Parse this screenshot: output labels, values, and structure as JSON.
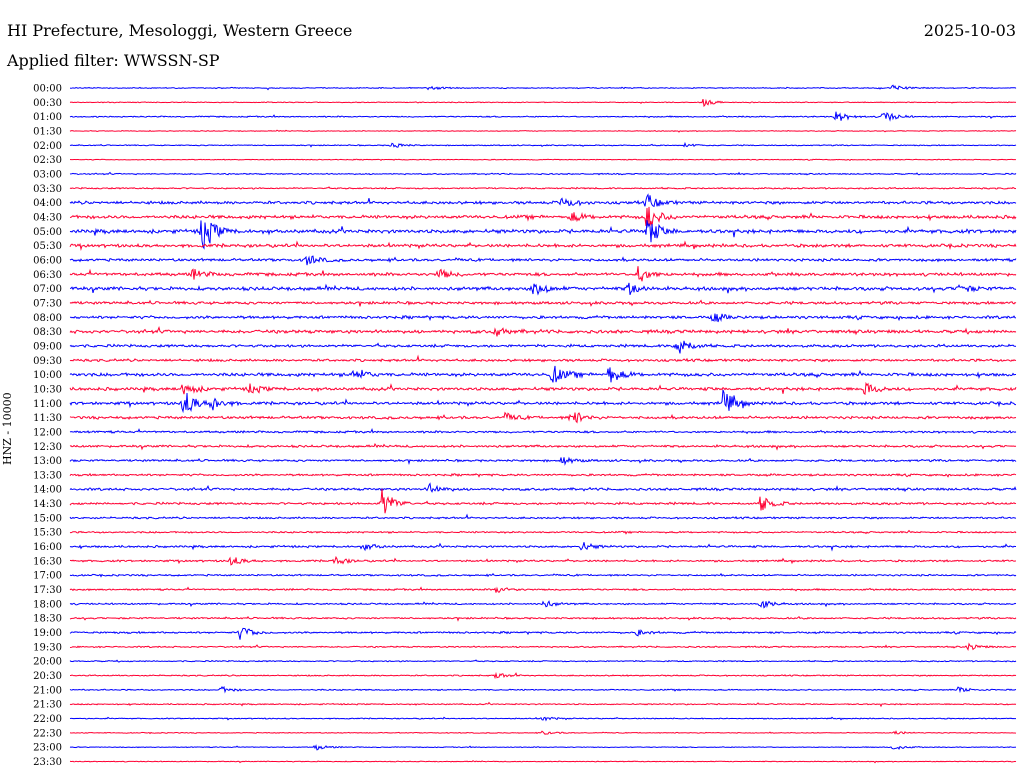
{
  "header": {
    "station": "HI Prefecture, Mesologgi, Western Greece",
    "date": "2025-10-03",
    "filter_label": "Applied filter: WWSSN-SP"
  },
  "colors": {
    "trace_even": "#0000ff",
    "trace_odd": "#ff0033",
    "text": "#000000",
    "background": "#ffffff"
  },
  "chart_data": {
    "type": "line",
    "title": "",
    "ylabel": "HNZ - 10000",
    "xlabel": "",
    "grid": false,
    "y_categories": [
      "00:00",
      "00:30",
      "01:00",
      "01:30",
      "02:00",
      "02:30",
      "03:00",
      "03:30",
      "04:00",
      "04:30",
      "05:00",
      "05:30",
      "06:00",
      "06:30",
      "07:00",
      "07:30",
      "08:00",
      "08:30",
      "09:00",
      "09:30",
      "10:00",
      "10:30",
      "11:00",
      "11:30",
      "12:00",
      "12:30",
      "13:00",
      "13:30",
      "14:00",
      "14:30",
      "15:00",
      "15:30",
      "16:00",
      "16:30",
      "17:00",
      "17:30",
      "18:00",
      "18:30",
      "19:00",
      "19:30",
      "20:00",
      "20:30",
      "21:00",
      "21:30",
      "22:00",
      "22:30",
      "23:00",
      "23:30"
    ],
    "noise_level": [
      0.5,
      0.4,
      0.6,
      0.4,
      0.5,
      0.4,
      0.6,
      0.7,
      1.4,
      1.6,
      1.8,
      1.5,
      1.3,
      1.5,
      1.7,
      1.3,
      1.4,
      1.6,
      1.3,
      1.2,
      1.6,
      1.5,
      1.4,
      1.3,
      1.0,
      1.1,
      1.0,
      1.0,
      1.2,
      1.1,
      0.9,
      0.8,
      1.0,
      0.9,
      0.8,
      0.8,
      0.8,
      0.8,
      0.9,
      0.7,
      0.6,
      0.6,
      0.6,
      0.6,
      0.5,
      0.4,
      0.4,
      0.4
    ],
    "events": [
      {
        "row": 0,
        "t": 0.38,
        "amp": 2
      },
      {
        "row": 0,
        "t": 0.87,
        "amp": 3
      },
      {
        "row": 1,
        "t": 0.67,
        "amp": 4
      },
      {
        "row": 2,
        "t": 0.81,
        "amp": 6
      },
      {
        "row": 2,
        "t": 0.86,
        "amp": 7
      },
      {
        "row": 4,
        "t": 0.34,
        "amp": 3
      },
      {
        "row": 4,
        "t": 0.65,
        "amp": 2
      },
      {
        "row": 8,
        "t": 0.52,
        "amp": 6
      },
      {
        "row": 8,
        "t": 0.61,
        "amp": 8
      },
      {
        "row": 9,
        "t": 0.61,
        "amp": 14
      },
      {
        "row": 9,
        "t": 0.53,
        "amp": 5
      },
      {
        "row": 10,
        "t": 0.14,
        "amp": 22
      },
      {
        "row": 10,
        "t": 0.61,
        "amp": 16
      },
      {
        "row": 12,
        "t": 0.25,
        "amp": 6
      },
      {
        "row": 13,
        "t": 0.13,
        "amp": 5
      },
      {
        "row": 13,
        "t": 0.6,
        "amp": 9
      },
      {
        "row": 13,
        "t": 0.39,
        "amp": 5
      },
      {
        "row": 14,
        "t": 0.49,
        "amp": 8
      },
      {
        "row": 14,
        "t": 0.59,
        "amp": 6
      },
      {
        "row": 14,
        "t": 0.94,
        "amp": 5
      },
      {
        "row": 16,
        "t": 0.68,
        "amp": 5
      },
      {
        "row": 17,
        "t": 0.45,
        "amp": 5
      },
      {
        "row": 18,
        "t": 0.64,
        "amp": 14
      },
      {
        "row": 20,
        "t": 0.3,
        "amp": 7
      },
      {
        "row": 20,
        "t": 0.51,
        "amp": 10
      },
      {
        "row": 20,
        "t": 0.57,
        "amp": 9
      },
      {
        "row": 21,
        "t": 0.12,
        "amp": 7
      },
      {
        "row": 21,
        "t": 0.84,
        "amp": 7
      },
      {
        "row": 21,
        "t": 0.19,
        "amp": 5
      },
      {
        "row": 22,
        "t": 0.12,
        "amp": 14
      },
      {
        "row": 22,
        "t": 0.15,
        "amp": 7
      },
      {
        "row": 22,
        "t": 0.69,
        "amp": 16
      },
      {
        "row": 23,
        "t": 0.53,
        "amp": 8
      },
      {
        "row": 23,
        "t": 0.46,
        "amp": 4
      },
      {
        "row": 26,
        "t": 0.52,
        "amp": 4
      },
      {
        "row": 28,
        "t": 0.38,
        "amp": 6
      },
      {
        "row": 29,
        "t": 0.33,
        "amp": 15
      },
      {
        "row": 29,
        "t": 0.73,
        "amp": 8
      },
      {
        "row": 32,
        "t": 0.54,
        "amp": 5
      },
      {
        "row": 32,
        "t": 0.31,
        "amp": 4
      },
      {
        "row": 33,
        "t": 0.17,
        "amp": 5
      },
      {
        "row": 33,
        "t": 0.28,
        "amp": 4
      },
      {
        "row": 35,
        "t": 0.45,
        "amp": 4
      },
      {
        "row": 36,
        "t": 0.5,
        "amp": 4
      },
      {
        "row": 36,
        "t": 0.73,
        "amp": 5
      },
      {
        "row": 38,
        "t": 0.18,
        "amp": 7
      },
      {
        "row": 38,
        "t": 0.6,
        "amp": 3
      },
      {
        "row": 39,
        "t": 0.95,
        "amp": 3
      },
      {
        "row": 41,
        "t": 0.45,
        "amp": 3
      },
      {
        "row": 42,
        "t": 0.16,
        "amp": 3
      },
      {
        "row": 42,
        "t": 0.94,
        "amp": 3
      },
      {
        "row": 44,
        "t": 0.5,
        "amp": 2
      },
      {
        "row": 45,
        "t": 0.5,
        "amp": 2
      },
      {
        "row": 45,
        "t": 0.87,
        "amp": 2
      },
      {
        "row": 46,
        "t": 0.26,
        "amp": 3
      },
      {
        "row": 46,
        "t": 0.87,
        "amp": 3
      }
    ]
  }
}
